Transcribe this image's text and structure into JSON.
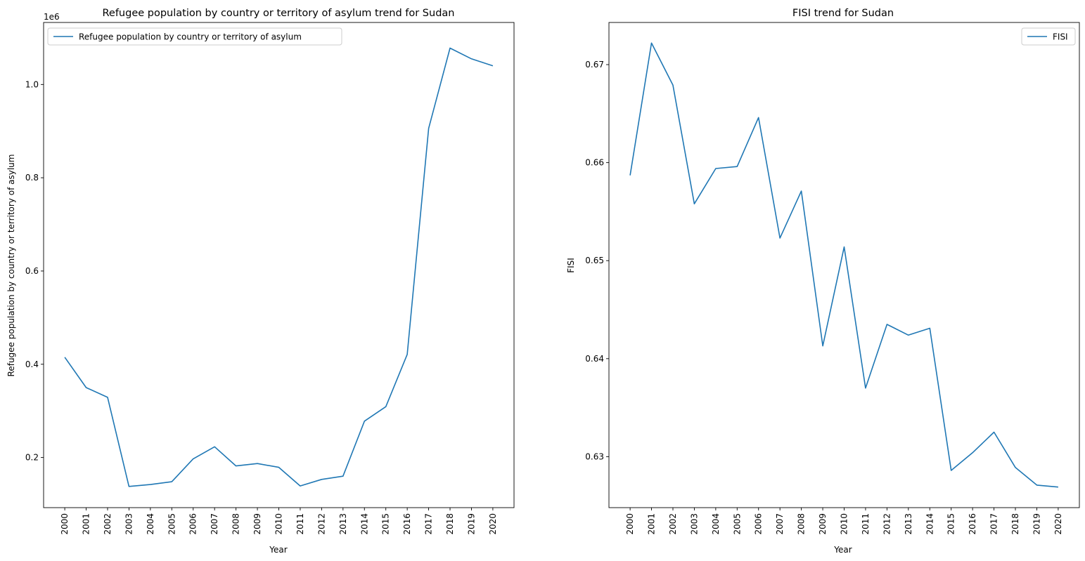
{
  "chart_data": [
    {
      "type": "line",
      "title": "Refugee population by country or territory of asylum trend for Sudan",
      "xlabel": "Year",
      "ylabel": "Refugee population by country or territory of asylum",
      "y_offset_label": "1e6",
      "legend": "upper-left",
      "grid": false,
      "x": [
        "2000",
        "2001",
        "2002",
        "2003",
        "2004",
        "2005",
        "2006",
        "2007",
        "2008",
        "2009",
        "2010",
        "2011",
        "2012",
        "2013",
        "2014",
        "2015",
        "2016",
        "2017",
        "2018",
        "2019",
        "2020"
      ],
      "ylim": [
        0.0925,
        1.133
      ],
      "yticks": [
        0.2,
        0.4,
        0.6,
        0.8,
        1.0
      ],
      "ytick_labels": [
        "0.2",
        "0.4",
        "0.6",
        "0.8",
        "1.0"
      ],
      "series": [
        {
          "name": "Refugee population by country or territory of asylum",
          "color": "#1f77b4",
          "values": [
            0.415,
            0.35,
            0.329,
            0.138,
            0.142,
            0.148,
            0.197,
            0.223,
            0.182,
            0.187,
            0.179,
            0.139,
            0.153,
            0.16,
            0.278,
            0.309,
            0.421,
            0.906,
            1.078,
            1.055,
            1.04
          ]
        }
      ]
    },
    {
      "type": "line",
      "title": "FISI trend for Sudan",
      "xlabel": "Year",
      "ylabel": "FISI",
      "legend": "upper-right",
      "grid": false,
      "x": [
        "2000",
        "2001",
        "2002",
        "2003",
        "2004",
        "2005",
        "2006",
        "2007",
        "2008",
        "2009",
        "2010",
        "2011",
        "2012",
        "2013",
        "2014",
        "2015",
        "2016",
        "2017",
        "2018",
        "2019",
        "2020"
      ],
      "ylim": [
        0.6248,
        0.6743
      ],
      "yticks": [
        0.63,
        0.64,
        0.65,
        0.66,
        0.67
      ],
      "ytick_labels": [
        "0.63",
        "0.64",
        "0.65",
        "0.66",
        "0.67"
      ],
      "series": [
        {
          "name": "FISI",
          "color": "#1f77b4",
          "values": [
            0.6587,
            0.6722,
            0.6679,
            0.6558,
            0.6594,
            0.6596,
            0.6646,
            0.6523,
            0.6571,
            0.6413,
            0.6514,
            0.637,
            0.6435,
            0.6424,
            0.6431,
            0.6286,
            0.6304,
            0.6325,
            0.6289,
            0.6271,
            0.6269
          ]
        }
      ]
    }
  ]
}
